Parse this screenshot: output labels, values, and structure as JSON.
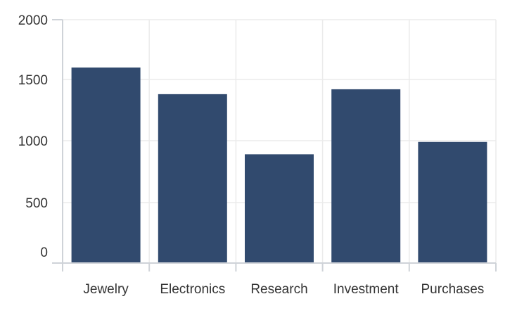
{
  "chart_data": {
    "type": "bar",
    "categories": [
      "Jewelry",
      "Electronics",
      "Research",
      "Investment",
      "Purchases"
    ],
    "series": [
      {
        "values": [
          1600,
          1380,
          890,
          1420,
          990
        ]
      }
    ],
    "title": "",
    "xlabel": "",
    "ylabel": "",
    "ylim": [
      0,
      2000
    ],
    "yticks": [
      0,
      500,
      1000,
      1500,
      2000
    ],
    "grid": true,
    "legend": "none",
    "colors": {
      "bar": "#314a6e",
      "grid": "#ebebeb",
      "axis": "#cfd3d8",
      "text": "#333333"
    }
  }
}
